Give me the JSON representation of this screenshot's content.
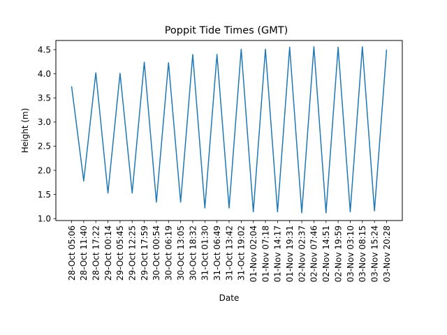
{
  "chart_data": {
    "type": "line",
    "title": "Poppit Tide Times (GMT)",
    "xlabel": "Date",
    "ylabel": "Height (m)",
    "ylim": [
      0.96,
      4.69
    ],
    "yticks": [
      "1.0",
      "1.5",
      "2.0",
      "2.5",
      "3.0",
      "3.5",
      "4.0",
      "4.5"
    ],
    "grid": false,
    "line_color": "#1f77b4",
    "categories": [
      "28-Oct 05:06",
      "28-Oct 11:40",
      "28-Oct 17:22",
      "29-Oct 00:14",
      "29-Oct 05:45",
      "29-Oct 12:25",
      "29-Oct 17:59",
      "30-Oct 00:54",
      "30-Oct 06:19",
      "30-Oct 13:05",
      "30-Oct 18:32",
      "31-Oct 01:30",
      "31-Oct 06:49",
      "31-Oct 13:42",
      "31-Oct 19:02",
      "01-Nov 02:04",
      "01-Nov 07:18",
      "01-Nov 14:17",
      "01-Nov 19:31",
      "02-Nov 02:37",
      "02-Nov 07:46",
      "02-Nov 14:51",
      "02-Nov 19:59",
      "03-Nov 03:10",
      "03-Nov 08:15",
      "03-Nov 15:24",
      "03-Nov 20:28"
    ],
    "values": [
      3.74,
      1.78,
      4.02,
      1.53,
      4.01,
      1.53,
      4.24,
      1.34,
      4.23,
      1.34,
      4.4,
      1.22,
      4.4,
      1.22,
      4.51,
      1.14,
      4.51,
      1.14,
      4.55,
      1.12,
      4.56,
      1.12,
      4.55,
      1.14,
      4.56,
      1.16,
      4.5
    ]
  }
}
